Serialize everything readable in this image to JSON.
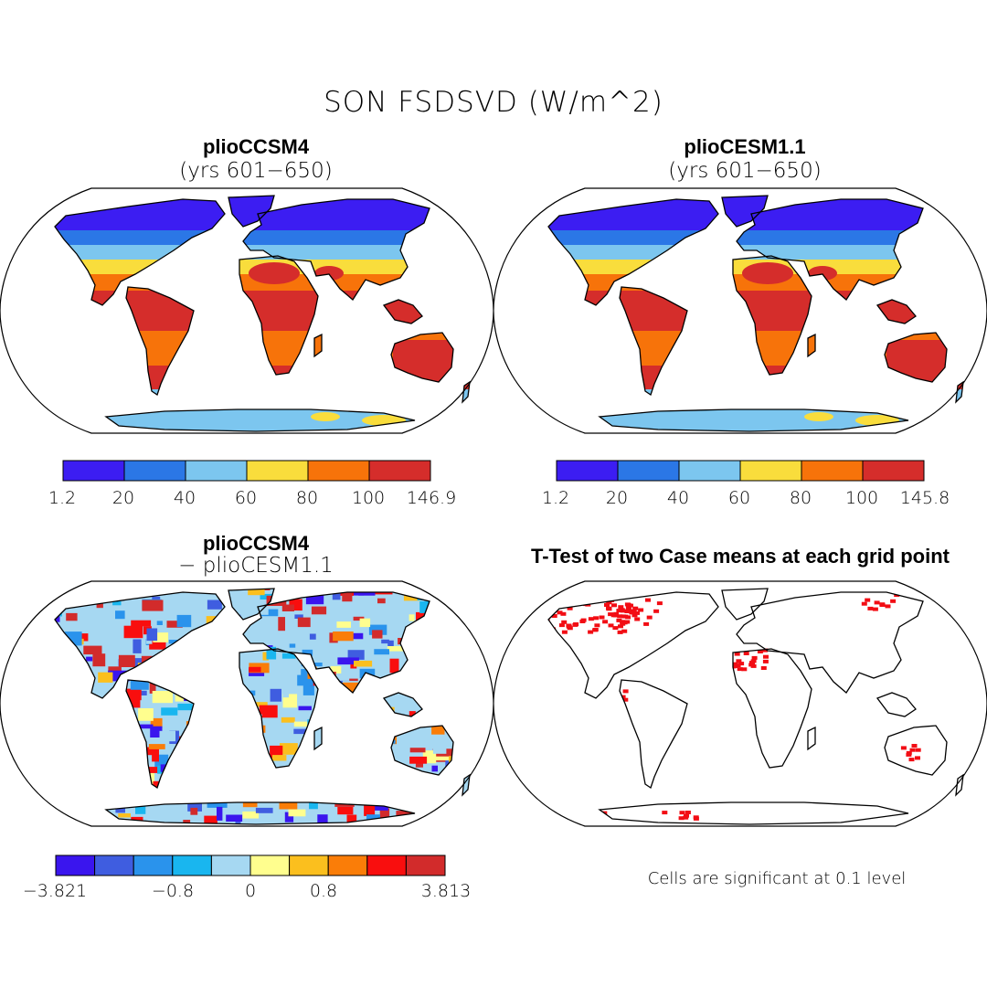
{
  "figure_title": "SON FSDSVD (W/m^2)",
  "colors": {
    "abs": [
      "#3c1df2",
      "#2b77e6",
      "#7cc6ef",
      "#f9dd3c",
      "#f7730a",
      "#d52d2b"
    ],
    "diff": [
      "#3a15ee",
      "#3f5de0",
      "#2a93ec",
      "#19b6ef",
      "#a6d8f2",
      "#fffe8e",
      "#fbbf1e",
      "#fa7d08",
      "#f90e0e",
      "#d22b2b"
    ],
    "sig": "#f20d14",
    "coast": "#000000"
  },
  "panels": {
    "p1": {
      "title": "plioCCSM4",
      "subtitle": "(yrs 601−650)",
      "icon": "world-map-icon"
    },
    "p2": {
      "title": "plioCESM1.1",
      "subtitle": "(yrs 601−650)",
      "icon": "world-map-icon"
    },
    "p3": {
      "title": "plioCCSM4",
      "subtitle": "− plioCESM1.1",
      "icon": "world-map-icon"
    },
    "p4": {
      "title": "T-Test of two Case means at each grid point",
      "note": "Cells are significant at 0.1 level",
      "icon": "world-map-icon"
    }
  },
  "colorbars": {
    "cb1": {
      "ticks": [
        "1.2",
        "20",
        "40",
        "60",
        "80",
        "100",
        "146.9"
      ]
    },
    "cb2": {
      "ticks": [
        "1.2",
        "20",
        "40",
        "60",
        "80",
        "100",
        "145.8"
      ]
    },
    "cb3": {
      "ticks": [
        "−3.821",
        "−0.8",
        "0",
        "0.8",
        "3.813"
      ]
    }
  },
  "chart_data": [
    {
      "type": "heatmap",
      "title": "plioCCSM4 (yrs 601−650)",
      "units": "W/m^2",
      "levels": [
        1.2,
        20,
        40,
        60,
        80,
        100,
        146.9
      ]
    },
    {
      "type": "heatmap",
      "title": "plioCESM1.1 (yrs 601−650)",
      "units": "W/m^2",
      "levels": [
        1.2,
        20,
        40,
        60,
        80,
        100,
        145.8
      ]
    },
    {
      "type": "heatmap",
      "title": "plioCCSM4 − plioCESM1.1",
      "units": "W/m^2",
      "levels": [
        -3.821,
        -0.8,
        0,
        0.8,
        3.813
      ]
    },
    {
      "type": "heatmap",
      "title": "T-Test of two Case means at each grid point",
      "significance_level": 0.1
    }
  ]
}
